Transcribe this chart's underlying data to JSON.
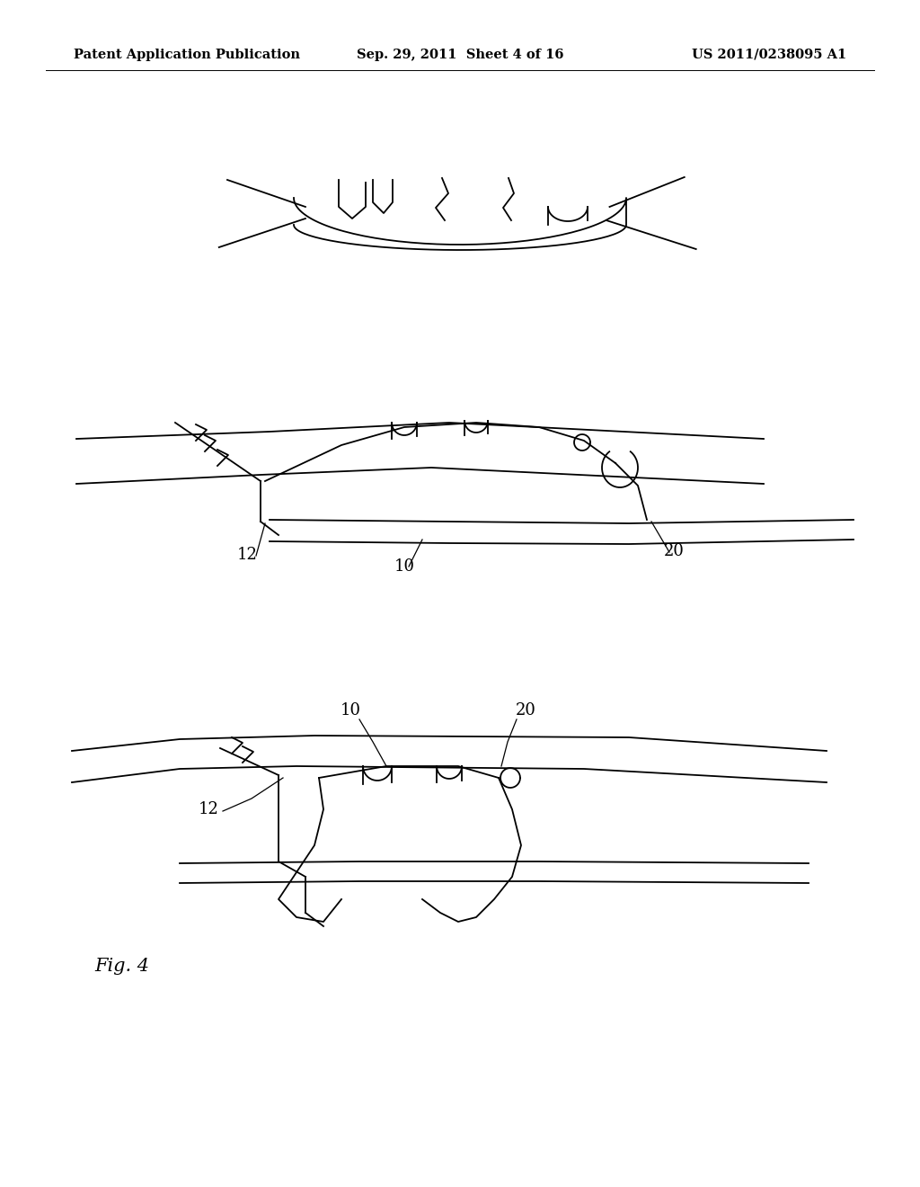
{
  "background_color": "#ffffff",
  "header_left": "Patent Application Publication",
  "header_center": "Sep. 29, 2011  Sheet 4 of 16",
  "header_right": "US 2011/0238095 A1",
  "fig_label": "Fig. 4",
  "line_color": "#000000",
  "line_width": 1.3,
  "header_fontsize": 10.5,
  "fig_label_fontsize": 15,
  "label_fontsize": 13
}
